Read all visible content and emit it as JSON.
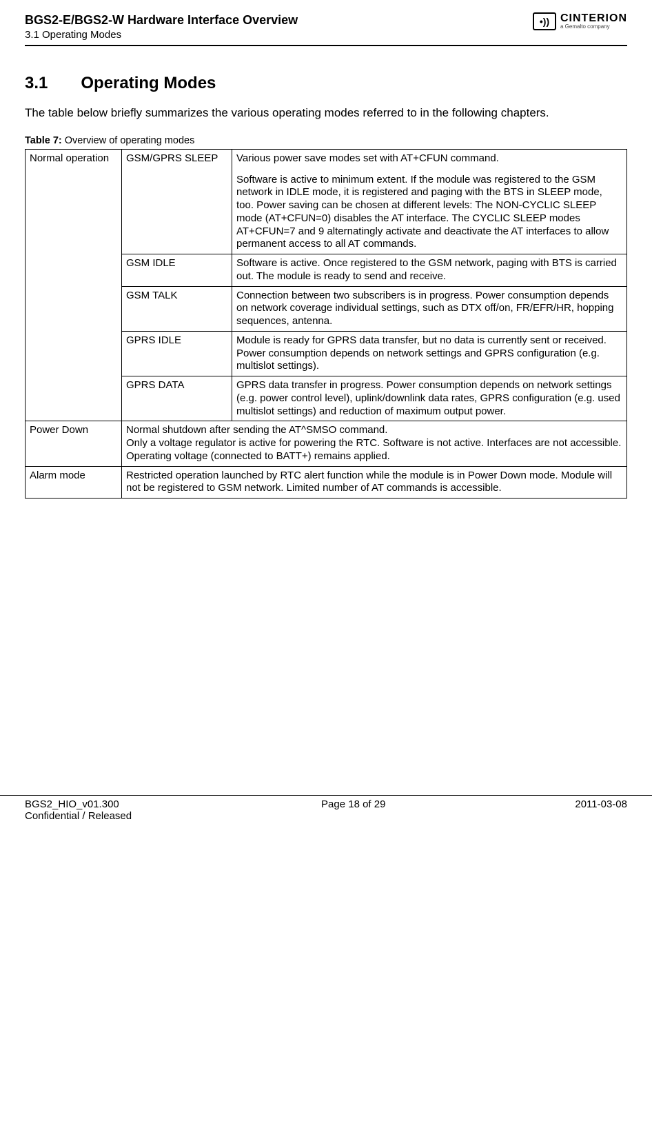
{
  "header": {
    "title": "BGS2-E/BGS2-W Hardware Interface Overview",
    "subtitle": "3.1 Operating Modes",
    "logo_brand": "CINTERION",
    "logo_tag": "a Gemalto company",
    "logo_glyph": "•))"
  },
  "section": {
    "num": "3.1",
    "title": "Operating Modes",
    "intro": "The table below briefly summarizes the various operating modes referred to in the following chapters."
  },
  "table": {
    "caption_label": "Table 7:",
    "caption_text": "Overview of operating modes",
    "rows": {
      "normal": {
        "label": "Normal operation",
        "sleep_mode": "GSM/GPRS SLEEP",
        "sleep_desc_1": "Various power save modes set with AT+CFUN command.",
        "sleep_desc_2": "Software is active to minimum extent. If the module was registered to the GSM network in IDLE mode, it is registered and paging with the BTS in SLEEP mode, too. Power saving can be chosen at different levels: The NON-CYCLIC SLEEP mode (AT+CFUN=0) disables the AT interface. The CYCLIC SLEEP modes AT+CFUN=7 and 9 alternatingly activate and deactivate the AT interfaces to allow permanent access to all AT commands.",
        "idle_mode": "GSM IDLE",
        "idle_desc": "Software is active. Once registered to the GSM network, paging with BTS is carried out. The module is ready to send and receive.",
        "talk_mode": "GSM TALK",
        "talk_desc": "Connection between two subscribers is in progress. Power consumption depends on network coverage individual settings, such as DTX off/on, FR/EFR/HR, hopping sequences, antenna.",
        "gprs_idle_mode": "GPRS IDLE",
        "gprs_idle_desc": "Module is ready for GPRS data transfer, but no data is currently sent or received. Power consumption depends on network settings and GPRS configuration (e.g. multislot settings).",
        "gprs_data_mode": "GPRS DATA",
        "gprs_data_desc": "GPRS data transfer in progress. Power consumption depends on network settings (e.g. power control level), uplink/downlink data rates, GPRS configuration (e.g. used multislot settings) and reduction of maximum output power."
      },
      "powerdown": {
        "label": "Power Down",
        "desc_1": "Normal shutdown after sending the AT^SMSO command.",
        "desc_2": "Only a voltage regulator is active for powering the RTC. Software is not active. Interfaces are not accessible.",
        "desc_3": "Operating voltage (connected to BATT+) remains applied."
      },
      "alarm": {
        "label": "Alarm mode",
        "desc": "Restricted operation launched by RTC alert function while the module is in Power Down mode. Module will not be registered to GSM network. Limited number of AT commands is accessible."
      }
    }
  },
  "footer": {
    "doc_id": "BGS2_HIO_v01.300",
    "confidential": "Confidential / Released",
    "page": "Page 18 of 29",
    "date": "2011-03-08"
  }
}
